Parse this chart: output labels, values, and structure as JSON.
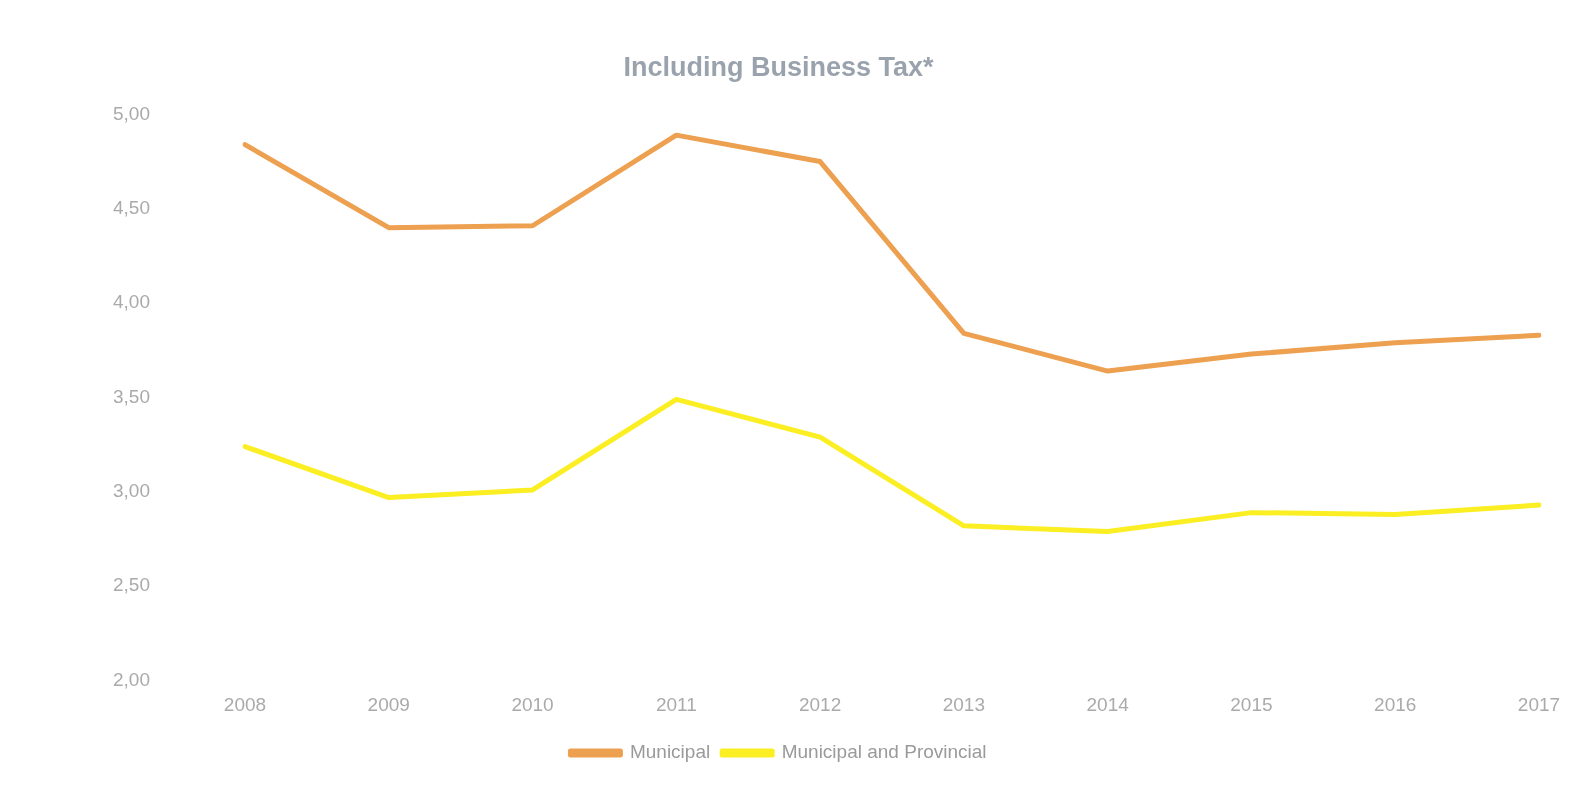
{
  "chart_data": {
    "type": "line",
    "title": "Including Business Tax*",
    "categories": [
      "2008",
      "2009",
      "2010",
      "2011",
      "2012",
      "2013",
      "2014",
      "2015",
      "2016",
      "2017"
    ],
    "series": [
      {
        "name": "Municipal",
        "color": "#eda050",
        "values": [
          4.84,
          4.4,
          4.41,
          4.89,
          4.75,
          3.84,
          3.64,
          3.73,
          3.79,
          3.83
        ]
      },
      {
        "name": "Municipal and Provincial",
        "color": "#fbee22",
        "values": [
          3.24,
          2.97,
          3.01,
          3.49,
          3.29,
          2.82,
          2.79,
          2.89,
          2.88,
          2.93
        ]
      }
    ],
    "ylim": [
      2,
      5
    ],
    "yticks": [
      {
        "value": 2,
        "label": "2,00"
      },
      {
        "value": 2.5,
        "label": "2,50"
      },
      {
        "value": 3,
        "label": "3,00"
      },
      {
        "value": 3.5,
        "label": "3,50"
      },
      {
        "value": 4,
        "label": "4,00"
      },
      {
        "value": 4.5,
        "label": "4,50"
      },
      {
        "value": 5,
        "label": "5,00"
      }
    ],
    "grid": false,
    "legend": "bottom",
    "marker": "none",
    "line_style": "solid"
  }
}
